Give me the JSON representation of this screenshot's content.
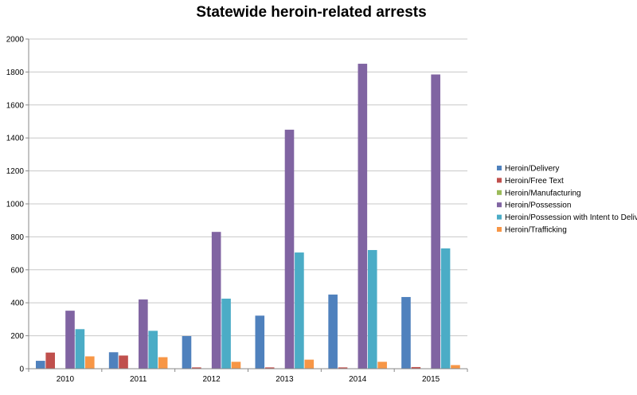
{
  "chart_data": {
    "type": "bar",
    "title": "Statewide heroin-related arrests",
    "xlabel": "",
    "ylabel": "",
    "categories": [
      "2010",
      "2011",
      "2012",
      "2013",
      "2014",
      "2015"
    ],
    "ylim": [
      0,
      2000
    ],
    "yticks": [
      "0",
      "200",
      "400",
      "600",
      "800",
      "1000",
      "1200",
      "1400",
      "1600",
      "1800",
      "2000"
    ],
    "grid": true,
    "legend_position": "right",
    "series": [
      {
        "name": "Heroin/Delivery",
        "color": "#4f81bd",
        "values": [
          48,
          100,
          198,
          322,
          450,
          435
        ]
      },
      {
        "name": "Heroin/Free Text",
        "color": "#c0504d",
        "values": [
          98,
          80,
          8,
          8,
          8,
          10
        ]
      },
      {
        "name": "Heroin/Manufacturing",
        "color": "#9bbb59",
        "values": [
          0,
          0,
          0,
          0,
          0,
          0
        ]
      },
      {
        "name": "Heroin/Possession",
        "color": "#8064a2",
        "values": [
          352,
          420,
          830,
          1450,
          1850,
          1785
        ]
      },
      {
        "name": "Heroin/Possession with Intent to Deliver",
        "color": "#4bacc6",
        "values": [
          240,
          230,
          425,
          705,
          720,
          730
        ]
      },
      {
        "name": "Heroin/Trafficking",
        "color": "#f79646",
        "values": [
          75,
          70,
          42,
          55,
          42,
          22
        ]
      }
    ]
  }
}
